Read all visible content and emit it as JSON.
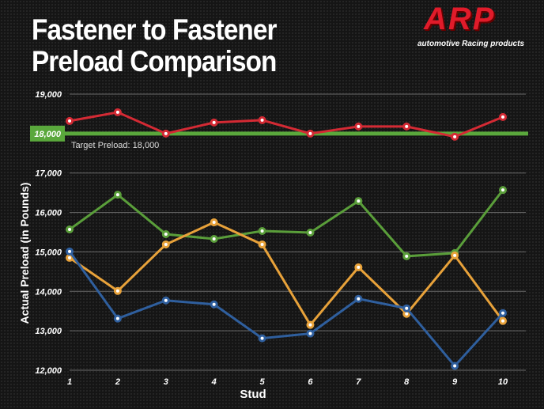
{
  "title_lines": [
    "Fastener to Fastener",
    "Preload Comparison"
  ],
  "logo": {
    "brand": "ARP",
    "tagline": "automotive Racing products"
  },
  "chart_data": {
    "type": "line",
    "title": "Fastener to Fastener Preload Comparison",
    "xlabel": "Stud",
    "ylabel": "Actual Preload (in Pounds)",
    "x": [
      1,
      2,
      3,
      4,
      5,
      6,
      7,
      8,
      9,
      10
    ],
    "x_tick_labels": [
      "1",
      "2",
      "3",
      "4",
      "5",
      "6",
      "7",
      "8",
      "9",
      "10"
    ],
    "ylim": [
      12000,
      19000
    ],
    "y_ticks": [
      12000,
      13000,
      14000,
      15000,
      16000,
      17000,
      18000,
      19000
    ],
    "y_tick_labels": [
      "12,000",
      "13,000",
      "14,000",
      "15,000",
      "16,000",
      "17,000",
      "18,000",
      "19,000"
    ],
    "grid": true,
    "target": {
      "value": 18000,
      "label": "Target Preload: 18,000",
      "color": "#5aa83c"
    },
    "series": [
      {
        "name": "red",
        "color": "#d42a34",
        "values": [
          18320,
          18540,
          18000,
          18280,
          18340,
          18000,
          18180,
          18180,
          17920,
          18420
        ]
      },
      {
        "name": "green",
        "color": "#5a9e3a",
        "values": [
          15570,
          16450,
          15450,
          15330,
          15530,
          15490,
          16290,
          14890,
          14970,
          16570
        ]
      },
      {
        "name": "orange",
        "color": "#e8a23a",
        "values": [
          14850,
          14010,
          15190,
          15750,
          15190,
          13150,
          14610,
          13430,
          14910,
          13250
        ]
      },
      {
        "name": "blue",
        "color": "#2f5f9e",
        "values": [
          15010,
          13310,
          13770,
          13670,
          12810,
          12930,
          13810,
          13570,
          12110,
          13450
        ]
      }
    ]
  }
}
